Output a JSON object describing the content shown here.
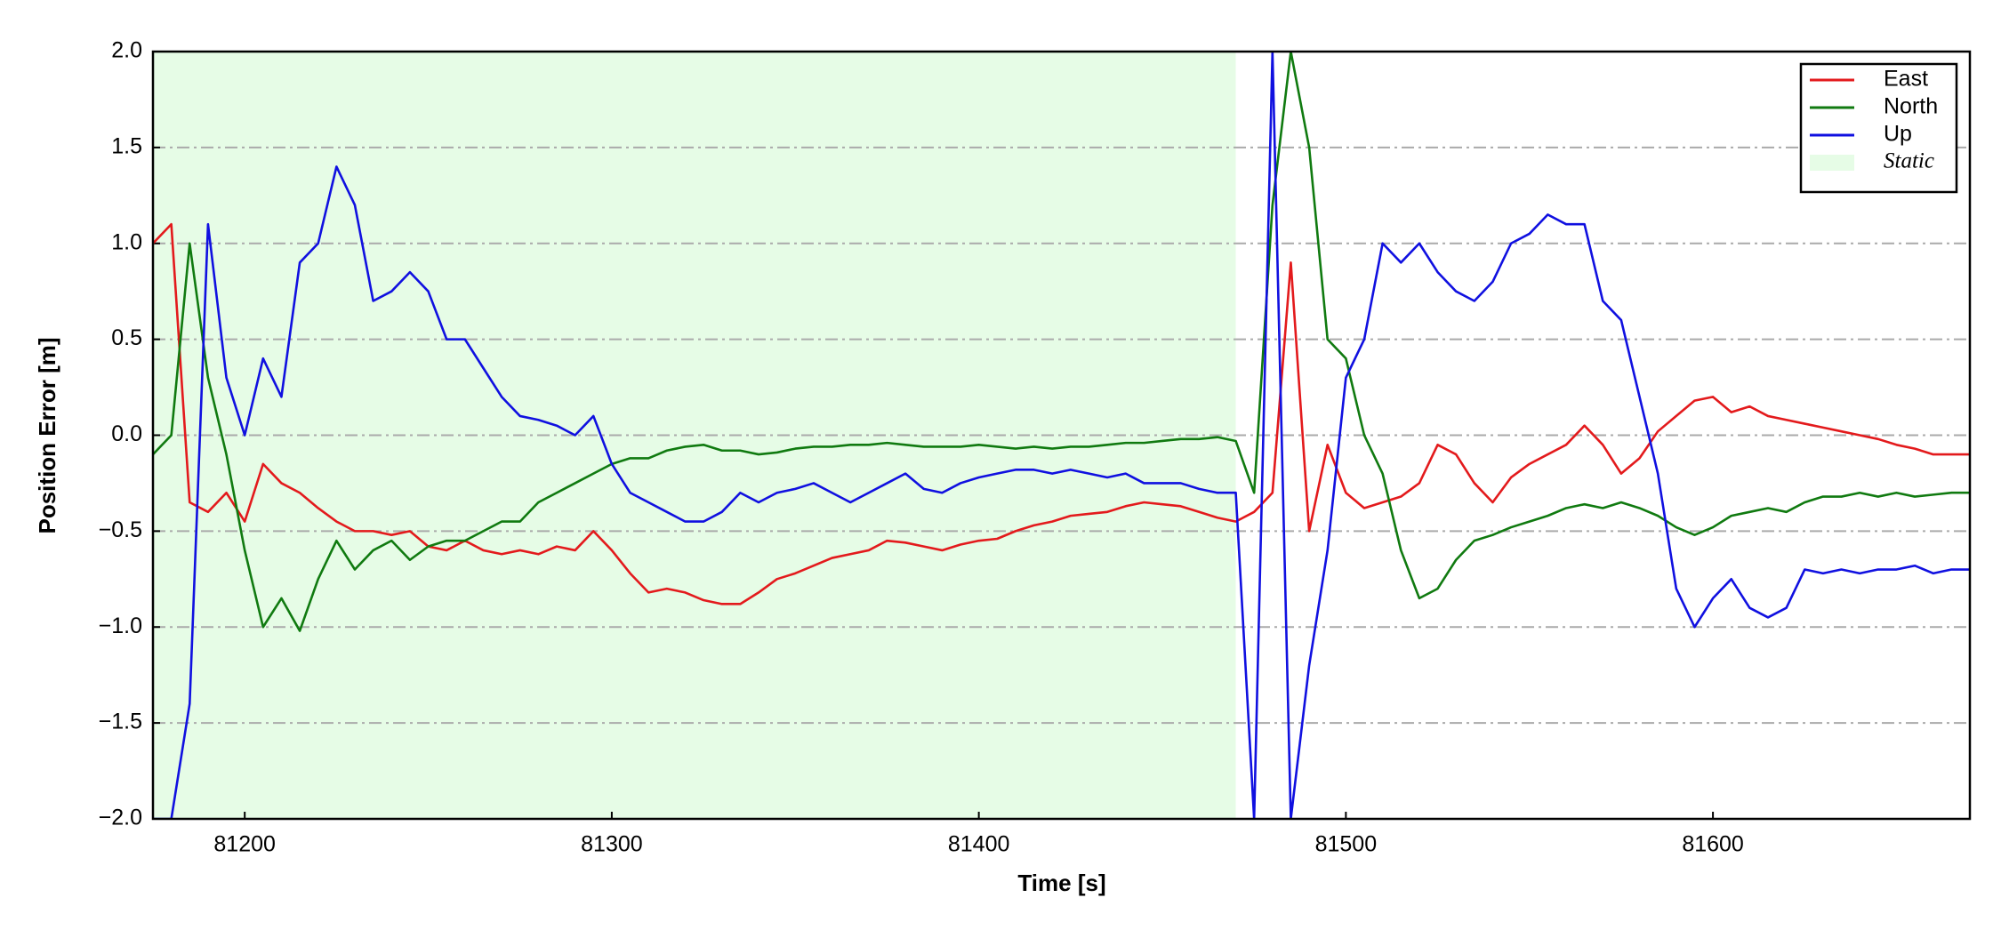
{
  "chart_data": {
    "type": "line",
    "xlabel": "Time [s]",
    "ylabel": "Position Error [m]",
    "x": [
      81175,
      81180,
      81185,
      81190,
      81195,
      81200,
      81205,
      81210,
      81215,
      81220,
      81225,
      81230,
      81235,
      81240,
      81245,
      81250,
      81255,
      81260,
      81265,
      81270,
      81275,
      81280,
      81285,
      81290,
      81295,
      81300,
      81305,
      81310,
      81315,
      81320,
      81325,
      81330,
      81335,
      81340,
      81345,
      81350,
      81355,
      81360,
      81365,
      81370,
      81375,
      81380,
      81385,
      81390,
      81395,
      81400,
      81405,
      81410,
      81415,
      81420,
      81425,
      81430,
      81435,
      81440,
      81445,
      81450,
      81455,
      81460,
      81465,
      81470,
      81475,
      81480,
      81485,
      81490,
      81495,
      81500,
      81505,
      81510,
      81515,
      81520,
      81525,
      81530,
      81535,
      81540,
      81545,
      81550,
      81555,
      81560,
      81565,
      81570,
      81575,
      81580,
      81585,
      81590,
      81595,
      81600,
      81605,
      81610,
      81615,
      81620,
      81625,
      81630,
      81635,
      81640,
      81645,
      81650,
      81655,
      81660,
      81665,
      81670
    ],
    "series": [
      {
        "name": "East",
        "color": "#e31a1c",
        "values": [
          1.0,
          1.1,
          -0.35,
          -0.4,
          -0.3,
          -0.45,
          -0.15,
          -0.25,
          -0.3,
          -0.38,
          -0.45,
          -0.5,
          -0.5,
          -0.52,
          -0.5,
          -0.58,
          -0.6,
          -0.55,
          -0.6,
          -0.62,
          -0.6,
          -0.62,
          -0.58,
          -0.6,
          -0.5,
          -0.6,
          -0.72,
          -0.82,
          -0.8,
          -0.82,
          -0.86,
          -0.88,
          -0.88,
          -0.82,
          -0.75,
          -0.72,
          -0.68,
          -0.64,
          -0.62,
          -0.6,
          -0.55,
          -0.56,
          -0.58,
          -0.6,
          -0.57,
          -0.55,
          -0.54,
          -0.5,
          -0.47,
          -0.45,
          -0.42,
          -0.41,
          -0.4,
          -0.37,
          -0.35,
          -0.36,
          -0.37,
          -0.4,
          -0.43,
          -0.45,
          -0.4,
          -0.3,
          0.9,
          -0.5,
          -0.05,
          -0.3,
          -0.38,
          -0.35,
          -0.32,
          -0.25,
          -0.05,
          -0.1,
          -0.25,
          -0.35,
          -0.22,
          -0.15,
          -0.1,
          -0.05,
          0.05,
          -0.05,
          -0.2,
          -0.12,
          0.02,
          0.1,
          0.18,
          0.2,
          0.12,
          0.15,
          0.1,
          0.08,
          0.06,
          0.04,
          0.02,
          0.0,
          -0.02,
          -0.05,
          -0.07,
          -0.1,
          -0.1,
          -0.1
        ]
      },
      {
        "name": "North",
        "color": "#107a10",
        "values": [
          -0.1,
          0.0,
          1.0,
          0.3,
          -0.1,
          -0.6,
          -1.0,
          -0.85,
          -1.02,
          -0.75,
          -0.55,
          -0.7,
          -0.6,
          -0.55,
          -0.65,
          -0.58,
          -0.55,
          -0.55,
          -0.5,
          -0.45,
          -0.45,
          -0.35,
          -0.3,
          -0.25,
          -0.2,
          -0.15,
          -0.12,
          -0.12,
          -0.08,
          -0.06,
          -0.05,
          -0.08,
          -0.08,
          -0.1,
          -0.09,
          -0.07,
          -0.06,
          -0.06,
          -0.05,
          -0.05,
          -0.04,
          -0.05,
          -0.06,
          -0.06,
          -0.06,
          -0.05,
          -0.06,
          -0.07,
          -0.06,
          -0.07,
          -0.06,
          -0.06,
          -0.05,
          -0.04,
          -0.04,
          -0.03,
          -0.02,
          -0.02,
          -0.01,
          -0.03,
          -0.3,
          1.2,
          2.0,
          1.5,
          0.5,
          0.4,
          0.0,
          -0.2,
          -0.6,
          -0.85,
          -0.8,
          -0.65,
          -0.55,
          -0.52,
          -0.48,
          -0.45,
          -0.42,
          -0.38,
          -0.36,
          -0.38,
          -0.35,
          -0.38,
          -0.42,
          -0.48,
          -0.52,
          -0.48,
          -0.42,
          -0.4,
          -0.38,
          -0.4,
          -0.35,
          -0.32,
          -0.32,
          -0.3,
          -0.32,
          -0.3,
          -0.32,
          -0.31,
          -0.3,
          -0.3
        ]
      },
      {
        "name": "Up",
        "color": "#1010e0",
        "values": [
          -2.0,
          -2.0,
          -1.4,
          1.1,
          0.3,
          0.0,
          0.4,
          0.2,
          0.9,
          1.0,
          1.4,
          1.2,
          0.7,
          0.75,
          0.85,
          0.75,
          0.5,
          0.5,
          0.35,
          0.2,
          0.1,
          0.08,
          0.05,
          0.0,
          0.1,
          -0.15,
          -0.3,
          -0.35,
          -0.4,
          -0.45,
          -0.45,
          -0.4,
          -0.3,
          -0.35,
          -0.3,
          -0.28,
          -0.25,
          -0.3,
          -0.35,
          -0.3,
          -0.25,
          -0.2,
          -0.28,
          -0.3,
          -0.25,
          -0.22,
          -0.2,
          -0.18,
          -0.18,
          -0.2,
          -0.18,
          -0.2,
          -0.22,
          -0.2,
          -0.25,
          -0.25,
          -0.25,
          -0.28,
          -0.3,
          -0.3,
          -2.0,
          2.0,
          -2.0,
          -1.2,
          -0.6,
          0.3,
          0.5,
          1.0,
          0.9,
          1.0,
          0.85,
          0.75,
          0.7,
          0.8,
          1.0,
          1.05,
          1.15,
          1.1,
          1.1,
          0.7,
          0.6,
          0.2,
          -0.2,
          -0.8,
          -1.0,
          -0.85,
          -0.75,
          -0.9,
          -0.95,
          -0.9,
          -0.7,
          -0.72,
          -0.7,
          -0.72,
          -0.7,
          -0.7,
          -0.68,
          -0.72,
          -0.7,
          -0.7
        ]
      }
    ],
    "shaded_region": {
      "label": "Static",
      "xmin": 81175,
      "xmax": 81470,
      "color": "#e6fce6"
    },
    "xlim": [
      81175,
      81670
    ],
    "xticks": [
      81200,
      81300,
      81400,
      81500,
      81600
    ],
    "ylim": [
      -2.0,
      2.0
    ],
    "yticks": [
      {
        "value": -2.0,
        "label": "−2.0"
      },
      {
        "value": -1.5,
        "label": "−1.5"
      },
      {
        "value": -1.0,
        "label": "−1.0"
      },
      {
        "value": -0.5,
        "label": "−0.5"
      },
      {
        "value": 0.0,
        "label": "0.0"
      },
      0.5,
      {
        "value": 1.0,
        "label": "1.0"
      },
      1.5,
      {
        "value": 2.0,
        "label": "2.0"
      }
    ],
    "grid": "y",
    "legend": "upper right"
  }
}
